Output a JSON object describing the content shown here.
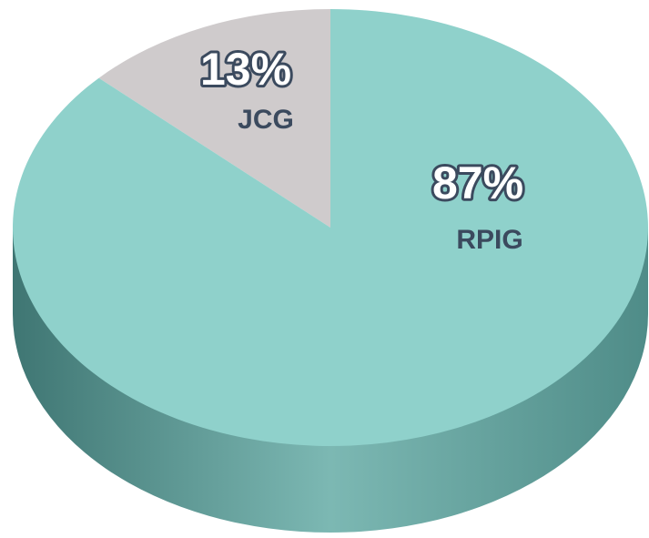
{
  "chart_data": {
    "type": "pie",
    "categories": [
      "JCG",
      "RPIG"
    ],
    "values": [
      13,
      87
    ],
    "value_labels": [
      "13%",
      "87%"
    ],
    "colors": [
      "#cfcbcc",
      "#8fd1cb"
    ]
  }
}
